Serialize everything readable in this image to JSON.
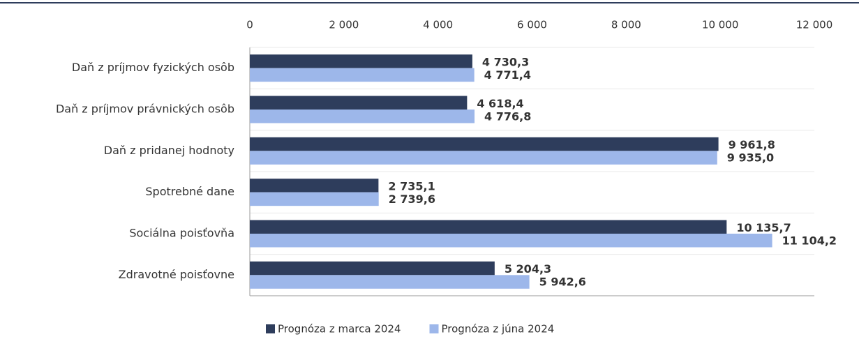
{
  "chart_data": {
    "type": "hbar",
    "categories": [
      "Daň z príjmov fyzických osôb",
      "Daň z príjmov právnických osôb",
      "Daň z pridanej hodnoty",
      "Spotrebné dane",
      "Sociálna poisťovňa",
      "Zdravotné poisťovne"
    ],
    "series": [
      {
        "name": "Prognóza z marca 2024",
        "color": "#2e3d5c",
        "values": [
          4730.3,
          4618.4,
          9961.8,
          2735.1,
          10135.7,
          5204.3
        ],
        "value_labels": [
          "4 730,3",
          "4 618,4",
          "9 961,8",
          "2 735,1",
          "10 135,7",
          "5 204,3"
        ]
      },
      {
        "name": "Prognóza z júna 2024",
        "color": "#9db7ea",
        "values": [
          4771.4,
          4776.8,
          9935.0,
          2739.6,
          11104.2,
          5942.6
        ],
        "value_labels": [
          "4 771,4",
          "4 776,8",
          "9 935,0",
          "2 739,6",
          "11 104,2",
          "5 942,6"
        ]
      }
    ],
    "xlim": [
      0,
      12000
    ],
    "xticks": [
      0,
      {
        "value": 2000,
        "label": "2 000"
      },
      {
        "value": 4000,
        "label": "4 000"
      },
      {
        "value": 6000,
        "label": "6 000"
      },
      {
        "value": 8000,
        "label": "8 000"
      },
      {
        "value": 10000,
        "label": "10 000"
      },
      {
        "value": 12000,
        "label": "12 000"
      }
    ],
    "grid": false,
    "legend": "bottom"
  }
}
